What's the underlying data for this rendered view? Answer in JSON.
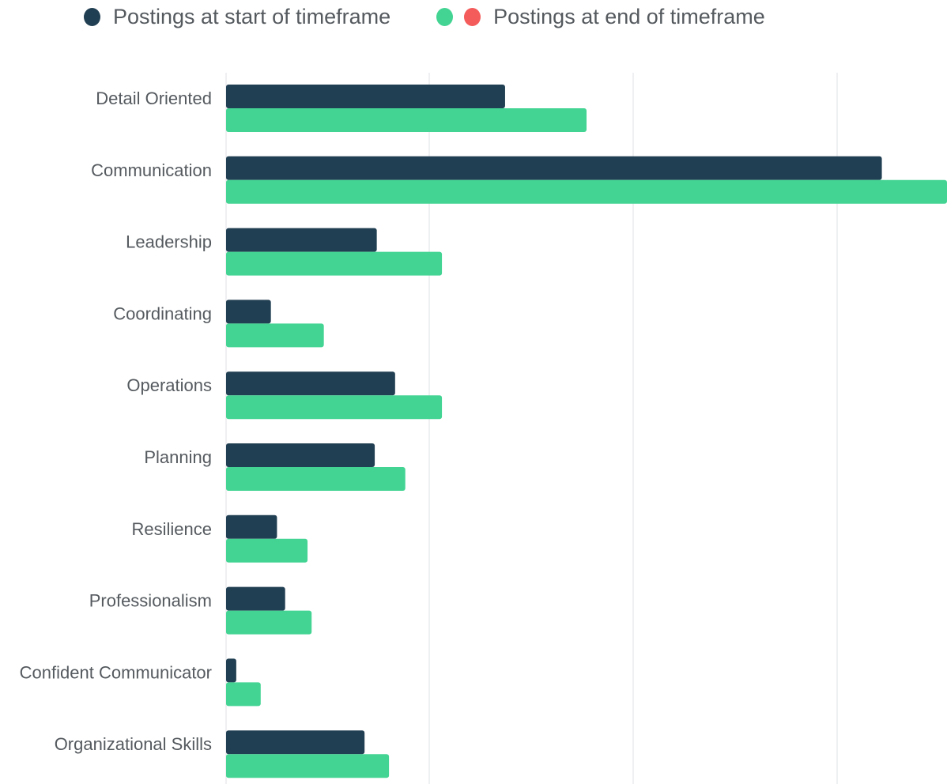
{
  "chart_data": {
    "type": "bar",
    "orientation": "horizontal",
    "categories": [
      "Detail Oriented",
      "Communication",
      "Leadership",
      "Coordinating",
      "Operations",
      "Planning",
      "Resilience",
      "Professionalism",
      "Confident Communicator",
      "Organizational Skills"
    ],
    "series": [
      {
        "name": "Postings at start of timeframe",
        "color": "#213f52",
        "values": [
          13.7,
          32.2,
          7.4,
          2.2,
          8.3,
          7.3,
          2.5,
          2.9,
          0.5,
          6.8
        ]
      },
      {
        "name": "Postings at end of timeframe",
        "color": "#43d493",
        "values": [
          17.7,
          35.4,
          10.6,
          4.8,
          10.6,
          8.8,
          4.0,
          4.2,
          1.7,
          8.0
        ]
      }
    ],
    "legend": {
      "position": "top-left",
      "extra_swatch_color": "#f45b5b"
    },
    "xlim": [
      0,
      35.4
    ],
    "grid": true,
    "xlabel": "",
    "ylabel": "",
    "title": ""
  }
}
